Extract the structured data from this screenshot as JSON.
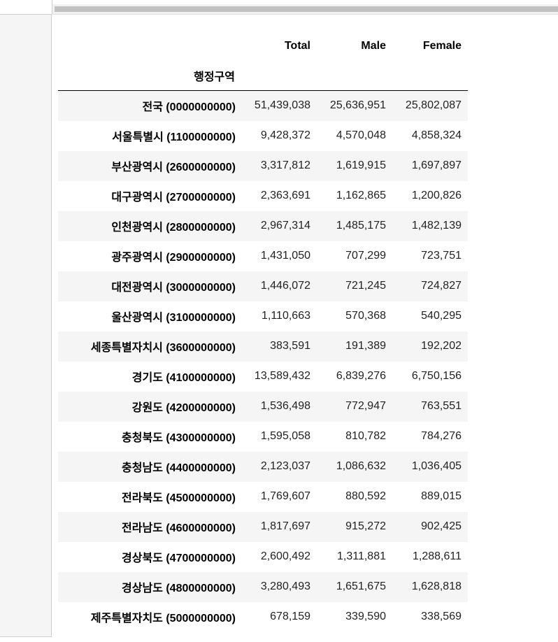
{
  "table": {
    "columns": [
      "Total",
      "Male",
      "Female"
    ],
    "index_name": "행정구역",
    "rows": [
      {
        "label": "전국 (0000000000)",
        "total": "51,439,038",
        "male": "25,636,951",
        "female": "25,802,087"
      },
      {
        "label": "서울특별시 (1100000000)",
        "total": "9,428,372",
        "male": "4,570,048",
        "female": "4,858,324"
      },
      {
        "label": "부산광역시 (2600000000)",
        "total": "3,317,812",
        "male": "1,619,915",
        "female": "1,697,897"
      },
      {
        "label": "대구광역시 (2700000000)",
        "total": "2,363,691",
        "male": "1,162,865",
        "female": "1,200,826"
      },
      {
        "label": "인천광역시 (2800000000)",
        "total": "2,967,314",
        "male": "1,485,175",
        "female": "1,482,139"
      },
      {
        "label": "광주광역시 (2900000000)",
        "total": "1,431,050",
        "male": "707,299",
        "female": "723,751"
      },
      {
        "label": "대전광역시 (3000000000)",
        "total": "1,446,072",
        "male": "721,245",
        "female": "724,827"
      },
      {
        "label": "울산광역시 (3100000000)",
        "total": "1,110,663",
        "male": "570,368",
        "female": "540,295"
      },
      {
        "label": "세종특별자치시 (3600000000)",
        "total": "383,591",
        "male": "191,389",
        "female": "192,202"
      },
      {
        "label": "경기도 (4100000000)",
        "total": "13,589,432",
        "male": "6,839,276",
        "female": "6,750,156"
      },
      {
        "label": "강원도 (4200000000)",
        "total": "1,536,498",
        "male": "772,947",
        "female": "763,551"
      },
      {
        "label": "충청북도 (4300000000)",
        "total": "1,595,058",
        "male": "810,782",
        "female": "784,276"
      },
      {
        "label": "충청남도 (4400000000)",
        "total": "2,123,037",
        "male": "1,086,632",
        "female": "1,036,405"
      },
      {
        "label": "전라북도 (4500000000)",
        "total": "1,769,607",
        "male": "880,592",
        "female": "889,015"
      },
      {
        "label": "전라남도 (4600000000)",
        "total": "1,817,697",
        "male": "915,272",
        "female": "902,425"
      },
      {
        "label": "경상북도 (4700000000)",
        "total": "2,600,492",
        "male": "1,311,881",
        "female": "1,288,611"
      },
      {
        "label": "경상남도 (4800000000)",
        "total": "3,280,493",
        "male": "1,651,675",
        "female": "1,628,818"
      },
      {
        "label": "제주특별자치도 (5000000000)",
        "total": "678,159",
        "male": "339,590",
        "female": "338,569"
      }
    ]
  }
}
